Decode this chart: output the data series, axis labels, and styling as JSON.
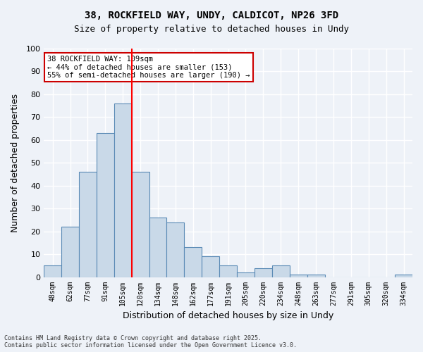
{
  "title_line1": "38, ROCKFIELD WAY, UNDY, CALDICOT, NP26 3FD",
  "title_line2": "Size of property relative to detached houses in Undy",
  "xlabel": "Distribution of detached houses by size in Undy",
  "ylabel": "Number of detached properties",
  "categories": [
    "48sqm",
    "62sqm",
    "77sqm",
    "91sqm",
    "105sqm",
    "120sqm",
    "134sqm",
    "148sqm",
    "162sqm",
    "177sqm",
    "191sqm",
    "205sqm",
    "220sqm",
    "234sqm",
    "248sqm",
    "263sqm",
    "277sqm",
    "291sqm",
    "305sqm",
    "320sqm",
    "334sqm"
  ],
  "values": [
    5,
    22,
    46,
    63,
    76,
    46,
    26,
    24,
    13,
    9,
    5,
    2,
    4,
    5,
    1,
    1,
    0,
    0,
    0,
    0,
    1
  ],
  "bar_color": "#c9d9e8",
  "bar_edge_color": "#5a8ab5",
  "background_color": "#eef2f8",
  "plot_bg_color": "#eef2f8",
  "grid_color": "#ffffff",
  "red_line_x": 4.5,
  "annotation_text": "38 ROCKFIELD WAY: 109sqm\n← 44% of detached houses are smaller (153)\n55% of semi-detached houses are larger (190) →",
  "annotation_box_color": "#ffffff",
  "annotation_border_color": "#cc0000",
  "ylim": [
    0,
    100
  ],
  "yticks": [
    0,
    10,
    20,
    30,
    40,
    50,
    60,
    70,
    80,
    90,
    100
  ],
  "footer": "Contains HM Land Registry data © Crown copyright and database right 2025.\nContains public sector information licensed under the Open Government Licence v3.0."
}
